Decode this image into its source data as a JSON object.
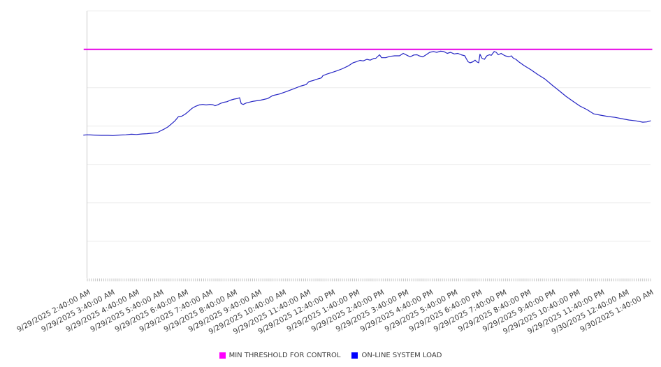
{
  "chart_data": {
    "type": "line",
    "title": "",
    "x_axis": {
      "range_minutes": [
        0,
        1380
      ],
      "minor_tick_step_minutes": 5,
      "major_tick_step_minutes": 60,
      "tick_labels": [
        "9/29/2025 2:40:00 AM",
        "9/29/2025 3:40:00 AM",
        "9/29/2025 4:40:00 AM",
        "9/29/2025 5:40:00 AM",
        "9/29/2025 6:40:00 AM",
        "9/29/2025 7:40:00 AM",
        "9/29/2025 8:40:00 AM",
        "9/29/2025 9:40:00 AM",
        "9/29/2025 10:40:00 AM",
        "9/29/2025 11:40:00 AM",
        "9/29/2025 12:40:00 PM",
        "9/29/2025 1:40:00 PM",
        "9/29/2025 2:40:00 PM",
        "9/29/2025 3:40:00 PM",
        "9/29/2025 4:40:00 PM",
        "9/29/2025 5:40:00 PM",
        "9/29/2025 6:40:00 PM",
        "9/29/2025 7:40:00 PM",
        "9/29/2025 8:40:00 PM",
        "9/29/2025 9:40:00 PM",
        "9/29/2025 10:40:00 PM",
        "9/29/2025 11:40:00 PM",
        "9/30/2025 12:40:00 AM",
        "9/30/2025 1:40:00 AM"
      ]
    },
    "y_axis": {
      "labels_visible": false,
      "ylim": [
        0,
        100
      ],
      "gridline_divisions": 7
    },
    "grid": true,
    "legend_position": "bottom-center",
    "series": [
      {
        "name": "MIN THRESHOLD FOR CONTROL",
        "kind": "threshold",
        "color": "#e600e6",
        "value": 85.7
      },
      {
        "name": "ON-LINE SYSTEM LOAD",
        "kind": "line",
        "color": "#2424c4",
        "points": [
          [
            -9,
            53.8
          ],
          [
            0,
            53.9
          ],
          [
            17,
            53.8
          ],
          [
            34,
            53.7
          ],
          [
            51,
            53.7
          ],
          [
            63,
            53.6
          ],
          [
            77,
            53.8
          ],
          [
            94,
            53.9
          ],
          [
            108,
            54.1
          ],
          [
            120,
            54.0
          ],
          [
            134,
            54.2
          ],
          [
            146,
            54.3
          ],
          [
            159,
            54.5
          ],
          [
            171,
            54.7
          ],
          [
            180,
            55.4
          ],
          [
            188,
            56.0
          ],
          [
            197,
            56.8
          ],
          [
            205,
            57.8
          ],
          [
            214,
            59.0
          ],
          [
            223,
            60.6
          ],
          [
            231,
            60.8
          ],
          [
            240,
            61.6
          ],
          [
            248,
            62.6
          ],
          [
            257,
            63.8
          ],
          [
            265,
            64.5
          ],
          [
            274,
            65.0
          ],
          [
            283,
            65.2
          ],
          [
            291,
            65.0
          ],
          [
            300,
            65.2
          ],
          [
            308,
            65.1
          ],
          [
            313,
            64.7
          ],
          [
            320,
            65.1
          ],
          [
            327,
            65.6
          ],
          [
            334,
            66.0
          ],
          [
            342,
            66.2
          ],
          [
            351,
            66.8
          ],
          [
            360,
            67.2
          ],
          [
            368,
            67.4
          ],
          [
            373,
            67.7
          ],
          [
            377,
            65.5
          ],
          [
            382,
            65.2
          ],
          [
            390,
            65.8
          ],
          [
            407,
            66.4
          ],
          [
            425,
            66.8
          ],
          [
            442,
            67.4
          ],
          [
            454,
            68.5
          ],
          [
            471,
            69.1
          ],
          [
            488,
            70.0
          ],
          [
            505,
            71.0
          ],
          [
            522,
            72.0
          ],
          [
            536,
            72.6
          ],
          [
            543,
            73.7
          ],
          [
            553,
            74.1
          ],
          [
            565,
            74.7
          ],
          [
            574,
            75.1
          ],
          [
            577,
            75.9
          ],
          [
            587,
            76.5
          ],
          [
            599,
            77.1
          ],
          [
            611,
            77.7
          ],
          [
            625,
            78.5
          ],
          [
            639,
            79.5
          ],
          [
            651,
            80.7
          ],
          [
            659,
            81.1
          ],
          [
            668,
            81.6
          ],
          [
            676,
            81.4
          ],
          [
            685,
            82.0
          ],
          [
            693,
            81.7
          ],
          [
            702,
            82.3
          ],
          [
            707,
            82.4
          ],
          [
            716,
            83.7
          ],
          [
            721,
            82.6
          ],
          [
            731,
            82.6
          ],
          [
            741,
            83.1
          ],
          [
            753,
            83.3
          ],
          [
            765,
            83.3
          ],
          [
            774,
            84.2
          ],
          [
            782,
            83.6
          ],
          [
            791,
            82.9
          ],
          [
            800,
            83.6
          ],
          [
            808,
            83.7
          ],
          [
            813,
            83.3
          ],
          [
            822,
            82.9
          ],
          [
            830,
            83.7
          ],
          [
            839,
            84.6
          ],
          [
            848,
            84.9
          ],
          [
            856,
            84.6
          ],
          [
            865,
            85.0
          ],
          [
            873,
            84.9
          ],
          [
            882,
            84.2
          ],
          [
            890,
            84.6
          ],
          [
            899,
            84.0
          ],
          [
            908,
            84.2
          ],
          [
            916,
            83.7
          ],
          [
            925,
            83.3
          ],
          [
            928,
            82.4
          ],
          [
            933,
            81.1
          ],
          [
            938,
            80.7
          ],
          [
            945,
            81.1
          ],
          [
            950,
            81.7
          ],
          [
            954,
            81.1
          ],
          [
            959,
            80.7
          ],
          [
            962,
            83.9
          ],
          [
            967,
            82.4
          ],
          [
            973,
            82.0
          ],
          [
            979,
            83.3
          ],
          [
            985,
            83.7
          ],
          [
            990,
            83.5
          ],
          [
            997,
            84.9
          ],
          [
            1002,
            84.6
          ],
          [
            1007,
            83.7
          ],
          [
            1014,
            84.2
          ],
          [
            1019,
            83.7
          ],
          [
            1024,
            83.3
          ],
          [
            1033,
            82.9
          ],
          [
            1039,
            83.3
          ],
          [
            1044,
            82.4
          ],
          [
            1050,
            82.0
          ],
          [
            1056,
            81.2
          ],
          [
            1070,
            79.7
          ],
          [
            1087,
            78.1
          ],
          [
            1104,
            76.3
          ],
          [
            1121,
            74.7
          ],
          [
            1139,
            72.4
          ],
          [
            1156,
            70.3
          ],
          [
            1173,
            68.2
          ],
          [
            1190,
            66.4
          ],
          [
            1207,
            64.6
          ],
          [
            1224,
            63.3
          ],
          [
            1241,
            61.7
          ],
          [
            1258,
            61.2
          ],
          [
            1276,
            60.7
          ],
          [
            1293,
            60.4
          ],
          [
            1310,
            59.9
          ],
          [
            1327,
            59.4
          ],
          [
            1344,
            59.1
          ],
          [
            1361,
            58.6
          ],
          [
            1371,
            58.7
          ],
          [
            1380,
            59.1
          ]
        ]
      }
    ],
    "legend": {
      "items": [
        {
          "label": "MIN THRESHOLD FOR CONTROL",
          "color": "#ff00ff"
        },
        {
          "label": "ON-LINE SYSTEM LOAD",
          "color": "#0000ff"
        }
      ]
    }
  },
  "colors": {
    "gridline": "#ececec",
    "axis_line": "#c9c9c9",
    "minor_tick": "#c4c4c4",
    "tick_label": "#3c3c3c",
    "background": "#ffffff"
  }
}
